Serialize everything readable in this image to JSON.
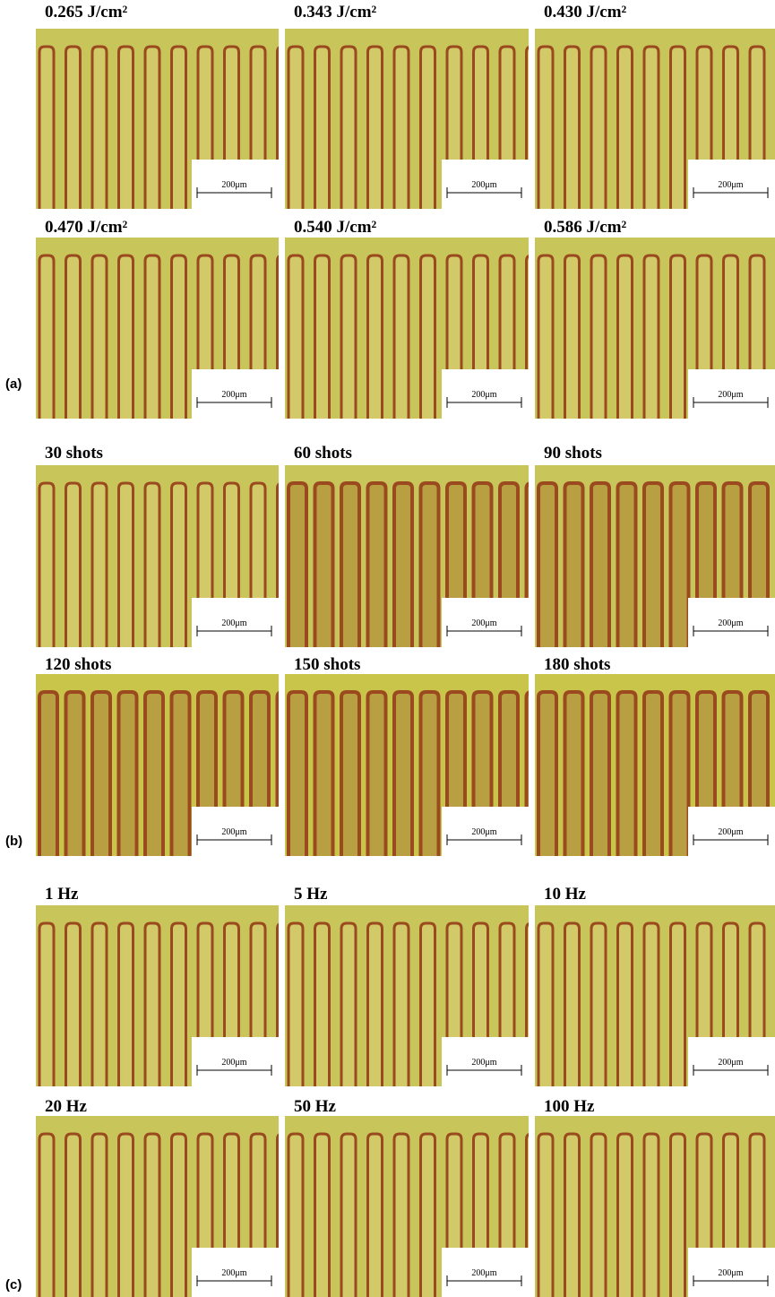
{
  "sections": [
    {
      "label": "(a)",
      "panels": [
        {
          "title": "0.265 J/cm²",
          "scale": "200μm"
        },
        {
          "title": "0.343 J/cm²",
          "scale": "200μm"
        },
        {
          "title": "0.430 J/cm²",
          "scale": "200μm"
        },
        {
          "title": "0.470 J/cm²",
          "scale": "200μm"
        },
        {
          "title": "0.540 J/cm²",
          "scale": "200μm"
        },
        {
          "title": "0.586 J/cm²",
          "scale": "200μm"
        }
      ]
    },
    {
      "label": "(b)",
      "panels": [
        {
          "title": "30 shots",
          "scale": "200μm"
        },
        {
          "title": "60 shots",
          "scale": "200μm"
        },
        {
          "title": "90 shots",
          "scale": "200μm"
        },
        {
          "title": "120 shots",
          "scale": "200μm"
        },
        {
          "title": "150 shots",
          "scale": "200μm"
        },
        {
          "title": "180 shots",
          "scale": "200μm"
        }
      ]
    },
    {
      "label": "(c)",
      "panels": [
        {
          "title": "1 Hz",
          "scale": "200μm"
        },
        {
          "title": "5 Hz",
          "scale": "200μm"
        },
        {
          "title": "10 Hz",
          "scale": "200μm"
        },
        {
          "title": "20 Hz",
          "scale": "200μm"
        },
        {
          "title": "50 Hz",
          "scale": "200μm"
        },
        {
          "title": "100 Hz",
          "scale": "200μm"
        }
      ]
    }
  ]
}
